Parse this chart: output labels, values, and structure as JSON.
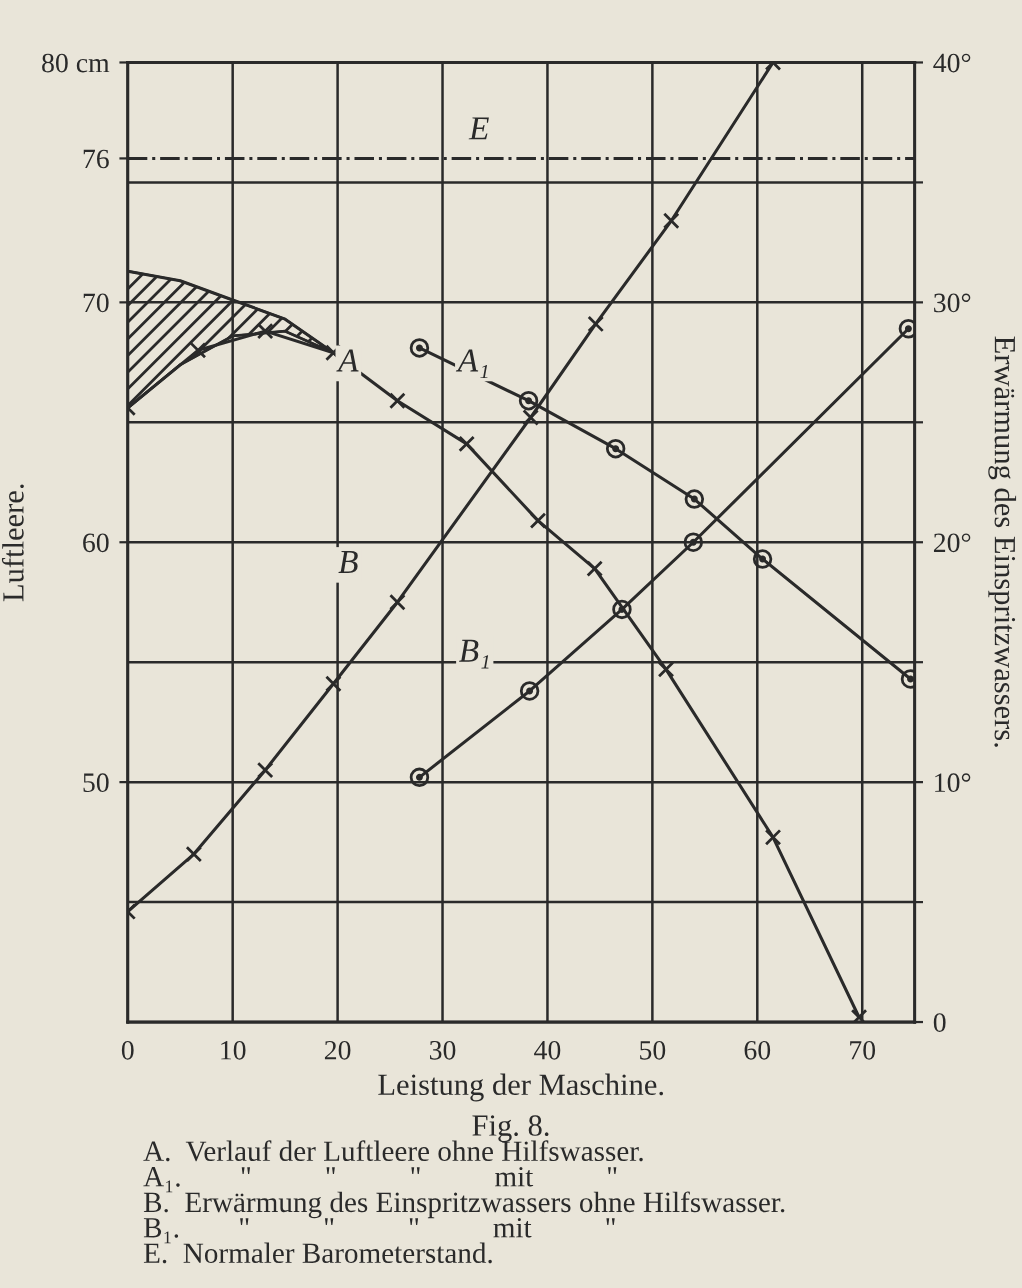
{
  "chart_data": {
    "type": "line",
    "xlabel": "Leistung der Maschine.",
    "ylabel": "Luftleere.",
    "y2label": "Erwärmung des Einspritzwassers.",
    "xlim": [
      0,
      75
    ],
    "xticks": [
      0,
      10,
      20,
      30,
      40,
      50,
      60,
      70
    ],
    "ylim": [
      40,
      80
    ],
    "yticks": [
      50,
      60,
      70,
      76,
      {
        "value": 80,
        "label": "80 cm"
      }
    ],
    "y2lim": [
      0,
      40
    ],
    "y2ticks": [
      {
        "value": 0,
        "label": "0"
      },
      {
        "value": 5,
        "label": null
      },
      {
        "value": 10,
        "label": "10°"
      },
      {
        "value": 15,
        "label": null
      },
      {
        "value": 20,
        "label": "20°"
      },
      {
        "value": 25,
        "label": null
      },
      {
        "value": 30,
        "label": "30°"
      },
      {
        "value": 35,
        "label": null
      },
      {
        "value": 40,
        "label": "40°"
      }
    ],
    "grid": true,
    "series": [
      {
        "color": "#2a2a2a",
        "marker": "none",
        "x": [
          0,
          5,
          10,
          15,
          19.6
        ],
        "values": [
          71.3,
          70.9,
          70.1,
          69.3,
          67.9
        ],
        "lower": [
          65.6,
          67.4,
          68.6,
          68.8,
          67.9
        ],
        "upper": [
          71.3,
          70.9,
          70.1,
          69.3,
          67.9
        ]
      },
      {
        "color": "#2a2a2a",
        "marker": "cross",
        "x": [
          0,
          6.7,
          13.1,
          19.6,
          25.7,
          32.3,
          39.1,
          44.5,
          51.3,
          61.5,
          69.7
        ],
        "values": [
          65.6,
          68.0,
          68.8,
          67.9,
          65.9,
          64.1,
          60.9,
          58.9,
          54.7,
          47.7,
          40.2
        ]
      },
      {
        "color": "#2a2a2a",
        "marker": "circle",
        "x": [
          27.8,
          38.2,
          46.5,
          54.0,
          60.5,
          74.6
        ],
        "values": [
          68.1,
          65.9,
          63.9,
          61.8,
          59.3,
          54.3
        ]
      },
      {
        "color": "#2a2a2a",
        "marker": "cross",
        "axis": "y2",
        "x": [
          0,
          6.3,
          13.1,
          19.6,
          25.7,
          38.4,
          44.6,
          51.8,
          61.5
        ],
        "values": [
          4.6,
          7.0,
          10.5,
          14.1,
          17.5,
          25.2,
          29.1,
          33.4,
          40
        ]
      },
      {
        "color": "#2a2a2a",
        "marker": "circle",
        "axis": "y2",
        "x": [
          27.8,
          38.3,
          47.1,
          53.9,
          74.4
        ],
        "values": [
          10.2,
          13.8,
          17.2,
          20.0,
          28.9
        ]
      }
    ],
    "ref_lines": [
      {
        "axis": "y",
        "value": 76,
        "label": "E",
        "color": "#2a2a2a",
        "line_style": "dashdot"
      }
    ],
    "annotations": [
      {
        "text": "A",
        "x": 25.7,
        "y": 65.9
      },
      {
        "text": "A₁",
        "x": 38.2,
        "y": 65.9
      },
      {
        "text": "B",
        "x": 25.7,
        "y": 57.5
      },
      {
        "text": "B₁",
        "x": 38.3,
        "y": 53.8
      },
      "Fig. 8.",
      "A.  Verlauf der Luftleere ohne Hilfswasser.",
      "A₁.        \"          \"          \"          mit          \"",
      "B.  Erwärmung des Einspritzwassers ohne Hilfswasser.",
      "B₁.        \"          \"          \"          mit          \"",
      "E.  Normaler Barometerstand."
    ]
  }
}
